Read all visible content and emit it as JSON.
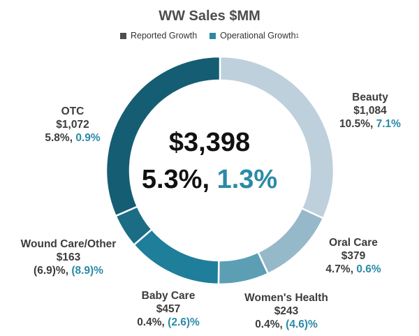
{
  "chart_data": {
    "type": "pie",
    "variant": "donut",
    "title": "WW Sales $MM",
    "legend": [
      {
        "label": "Reported Growth",
        "sup": "",
        "color": "#4d4d4d"
      },
      {
        "label": "Operational Growth",
        "sup": "1",
        "color": "#2a8aa6"
      }
    ],
    "center": {
      "total": "$3,398",
      "reported": "5.3%",
      "separator": ",",
      "operational": "1.3%"
    },
    "slices": [
      {
        "name": "Beauty",
        "value": 1084,
        "value_label": "$1,084",
        "reported": "10.5%",
        "operational": "7.1%",
        "color": "#bdd0dc"
      },
      {
        "name": "Oral Care",
        "value": 379,
        "value_label": "$379",
        "reported": "4.7%",
        "operational": "0.6%",
        "color": "#96b9c9"
      },
      {
        "name": "Women's Health",
        "value": 243,
        "value_label": "$243",
        "reported": "0.4%",
        "operational": "(4.6)%",
        "color": "#5c9fb5"
      },
      {
        "name": "Baby Care",
        "value": 457,
        "value_label": "$457",
        "reported": "0.4%",
        "operational": "(2.6)%",
        "color": "#1f7e99"
      },
      {
        "name": "Wound Care/Other",
        "value": 163,
        "value_label": "$163",
        "reported": "(6.9)%",
        "operational": "(8.9)%",
        "color": "#1a6d85"
      },
      {
        "name": "OTC",
        "value": 1072,
        "value_label": "$1,072",
        "reported": "5.8%",
        "operational": "0.9%",
        "color": "#155d72"
      }
    ]
  }
}
